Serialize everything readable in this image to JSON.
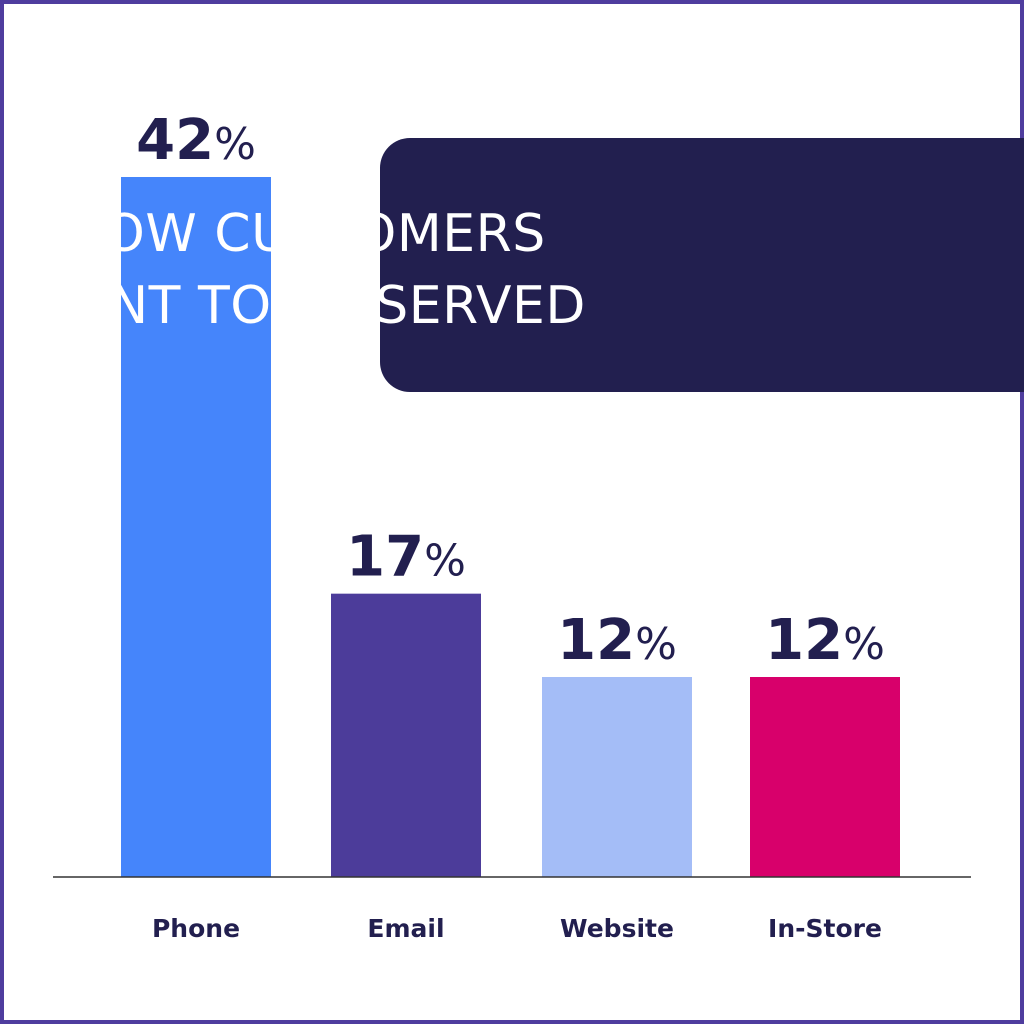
{
  "chart_data": {
    "type": "bar",
    "title_lines": [
      "HOW CUSTOMERS",
      "WANT TO BE SERVED"
    ],
    "categories": [
      "Phone",
      "Email",
      "Website",
      "In-Store"
    ],
    "values": [
      42,
      17,
      12,
      12
    ],
    "value_labels": [
      "42%",
      "17%",
      "12%",
      "12%"
    ],
    "bar_colors": [
      "#4585fb",
      "#4c3c9a",
      "#a4bdf7",
      "#d8006b"
    ],
    "label_color": "#221f4f",
    "title_box_color": "#221f4f",
    "title_text_color": "#ffffff",
    "xlabel": "",
    "ylabel": "",
    "ylim": [
      0,
      42
    ],
    "grid": false,
    "legend": "none"
  },
  "frame_color": "#4f3d9e"
}
